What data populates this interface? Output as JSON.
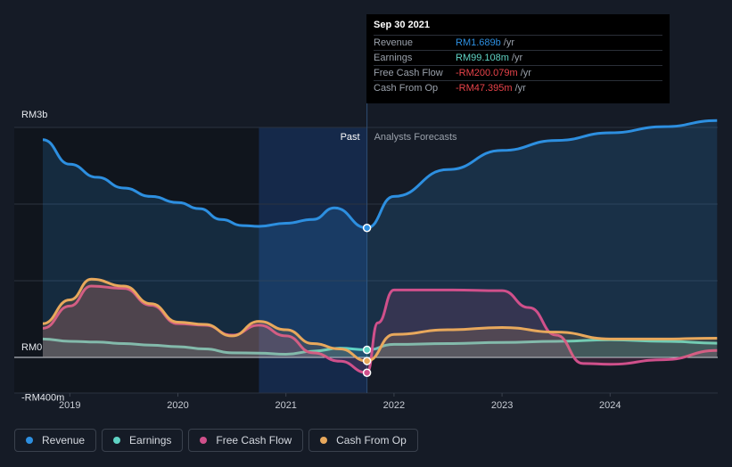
{
  "chart_data": {
    "type": "line",
    "title": "",
    "ylim": [
      -400,
      3000
    ],
    "y_axis_labels": [
      {
        "value": 3000,
        "label": "RM3b"
      },
      {
        "value": 0,
        "label": "RM0"
      },
      {
        "value": -400,
        "label": "-RM400m"
      }
    ],
    "x_ticks": [
      {
        "year": 2019,
        "label": "2019"
      },
      {
        "year": 2020,
        "label": "2020"
      },
      {
        "year": 2021,
        "label": "2021"
      },
      {
        "year": 2022,
        "label": "2022"
      },
      {
        "year": 2023,
        "label": "2023"
      },
      {
        "year": 2024,
        "label": "2024"
      }
    ],
    "xlim": [
      2018.75,
      2024.99
    ],
    "divider_year": 2021.75,
    "past_shade_start": 2020.75,
    "past_label": "Past",
    "forecast_label": "Analysts Forecasts",
    "series": [
      {
        "name": "Revenue",
        "color": "#2d8fe0",
        "fill": true,
        "points": [
          [
            2018.75,
            2840
          ],
          [
            2019.0,
            2520
          ],
          [
            2019.25,
            2350
          ],
          [
            2019.5,
            2210
          ],
          [
            2019.75,
            2100
          ],
          [
            2020.0,
            2020
          ],
          [
            2020.2,
            1940
          ],
          [
            2020.4,
            1800
          ],
          [
            2020.6,
            1720
          ],
          [
            2020.75,
            1710
          ],
          [
            2021.0,
            1750
          ],
          [
            2021.25,
            1800
          ],
          [
            2021.45,
            1950
          ],
          [
            2021.75,
            1689
          ],
          [
            2022.0,
            2100
          ],
          [
            2022.5,
            2450
          ],
          [
            2023.0,
            2700
          ],
          [
            2023.5,
            2830
          ],
          [
            2024.0,
            2930
          ],
          [
            2024.5,
            3010
          ],
          [
            2024.99,
            3090
          ]
        ]
      },
      {
        "name": "Earnings",
        "color": "#5fd3c4",
        "fill": true,
        "points": [
          [
            2018.75,
            240
          ],
          [
            2019.0,
            210
          ],
          [
            2019.25,
            200
          ],
          [
            2019.5,
            180
          ],
          [
            2019.75,
            160
          ],
          [
            2020.0,
            140
          ],
          [
            2020.25,
            110
          ],
          [
            2020.5,
            60
          ],
          [
            2020.75,
            55
          ],
          [
            2021.0,
            40
          ],
          [
            2021.25,
            80
          ],
          [
            2021.5,
            120
          ],
          [
            2021.75,
            99.108
          ],
          [
            2022.0,
            170
          ],
          [
            2022.5,
            180
          ],
          [
            2023.0,
            195
          ],
          [
            2023.5,
            210
          ],
          [
            2024.0,
            230
          ],
          [
            2024.5,
            210
          ],
          [
            2024.99,
            185
          ]
        ]
      },
      {
        "name": "Free Cash Flow",
        "color": "#d0508b",
        "fill": true,
        "points": [
          [
            2018.75,
            380
          ],
          [
            2019.0,
            670
          ],
          [
            2019.2,
            930
          ],
          [
            2019.5,
            900
          ],
          [
            2019.75,
            680
          ],
          [
            2020.0,
            440
          ],
          [
            2020.25,
            420
          ],
          [
            2020.5,
            290
          ],
          [
            2020.75,
            420
          ],
          [
            2021.0,
            280
          ],
          [
            2021.25,
            60
          ],
          [
            2021.5,
            -50
          ],
          [
            2021.75,
            -200.079
          ],
          [
            2021.85,
            450
          ],
          [
            2022.0,
            880
          ],
          [
            2022.5,
            880
          ],
          [
            2023.0,
            870
          ],
          [
            2023.25,
            650
          ],
          [
            2023.5,
            290
          ],
          [
            2023.75,
            -80
          ],
          [
            2024.0,
            -90
          ],
          [
            2024.5,
            -30
          ],
          [
            2024.99,
            90
          ]
        ]
      },
      {
        "name": "Cash From Op",
        "color": "#e8a85c",
        "fill": true,
        "points": [
          [
            2018.75,
            440
          ],
          [
            2019.0,
            750
          ],
          [
            2019.2,
            1020
          ],
          [
            2019.5,
            930
          ],
          [
            2019.75,
            700
          ],
          [
            2020.0,
            460
          ],
          [
            2020.25,
            430
          ],
          [
            2020.5,
            280
          ],
          [
            2020.75,
            470
          ],
          [
            2021.0,
            360
          ],
          [
            2021.25,
            180
          ],
          [
            2021.5,
            110
          ],
          [
            2021.75,
            -47.395
          ],
          [
            2022.0,
            300
          ],
          [
            2022.5,
            360
          ],
          [
            2023.0,
            390
          ],
          [
            2023.5,
            330
          ],
          [
            2024.0,
            240
          ],
          [
            2024.5,
            240
          ],
          [
            2024.99,
            250
          ]
        ]
      }
    ]
  },
  "tooltip": {
    "date": "Sep 30 2021",
    "rows": [
      {
        "label": "Revenue",
        "value": "RM1.689b",
        "unit": "/yr",
        "color": "#2d8fe0"
      },
      {
        "label": "Earnings",
        "value": "RM99.108m",
        "unit": "/yr",
        "color": "#5fd3c4"
      },
      {
        "label": "Free Cash Flow",
        "value": "-RM200.079m",
        "unit": "/yr",
        "color": "#e8434a"
      },
      {
        "label": "Cash From Op",
        "value": "-RM47.395m",
        "unit": "/yr",
        "color": "#e8434a"
      }
    ]
  },
  "legend": [
    {
      "label": "Revenue",
      "color": "#2d8fe0"
    },
    {
      "label": "Earnings",
      "color": "#5fd3c4"
    },
    {
      "label": "Free Cash Flow",
      "color": "#d0508b"
    },
    {
      "label": "Cash From Op",
      "color": "#e8a85c"
    }
  ]
}
